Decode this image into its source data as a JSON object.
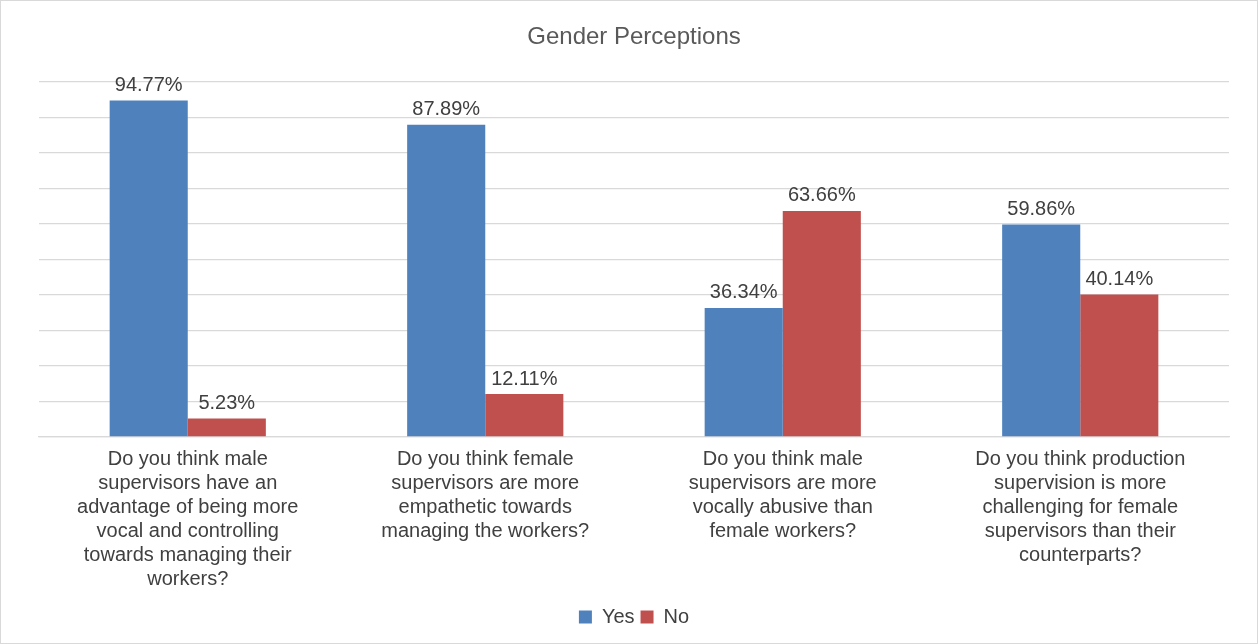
{
  "chart_data": {
    "type": "bar",
    "title": "Gender Perceptions",
    "categories": [
      "Do you think male supervisors have an advantage of being more vocal and controlling towards managing their workers?",
      "Do you think female supervisors are more empathetic towards managing the workers?",
      "Do you think male supervisors are more vocally abusive than female workers?",
      "Do you think production supervision is more challenging for female supervisors than their counterparts?"
    ],
    "series": [
      {
        "name": "Yes",
        "color": "#4f81bd",
        "values": [
          94.77,
          87.89,
          36.34,
          59.86
        ],
        "value_labels": [
          "94.77%",
          "87.89%",
          "36.34%",
          "59.86%"
        ]
      },
      {
        "name": "No",
        "color": "#c0504d",
        "values": [
          5.23,
          12.11,
          63.66,
          40.14
        ],
        "value_labels": [
          "5.23%",
          "12.11%",
          "63.66%",
          "40.14%"
        ]
      }
    ],
    "ylim": [
      0,
      100
    ],
    "yticks": [
      {
        "value": 0,
        "label": null
      },
      {
        "value": 10,
        "label": null
      },
      {
        "value": 20,
        "label": null
      },
      {
        "value": 30,
        "label": null
      },
      {
        "value": 40,
        "label": null
      },
      {
        "value": 50,
        "label": null
      },
      {
        "value": 60,
        "label": null
      },
      {
        "value": 70,
        "label": null
      },
      {
        "value": 80,
        "label": null
      },
      {
        "value": 90,
        "label": null
      },
      {
        "value": 100,
        "label": null
      }
    ],
    "tick_labels": "x",
    "grid": "y",
    "legend": "bottom"
  }
}
